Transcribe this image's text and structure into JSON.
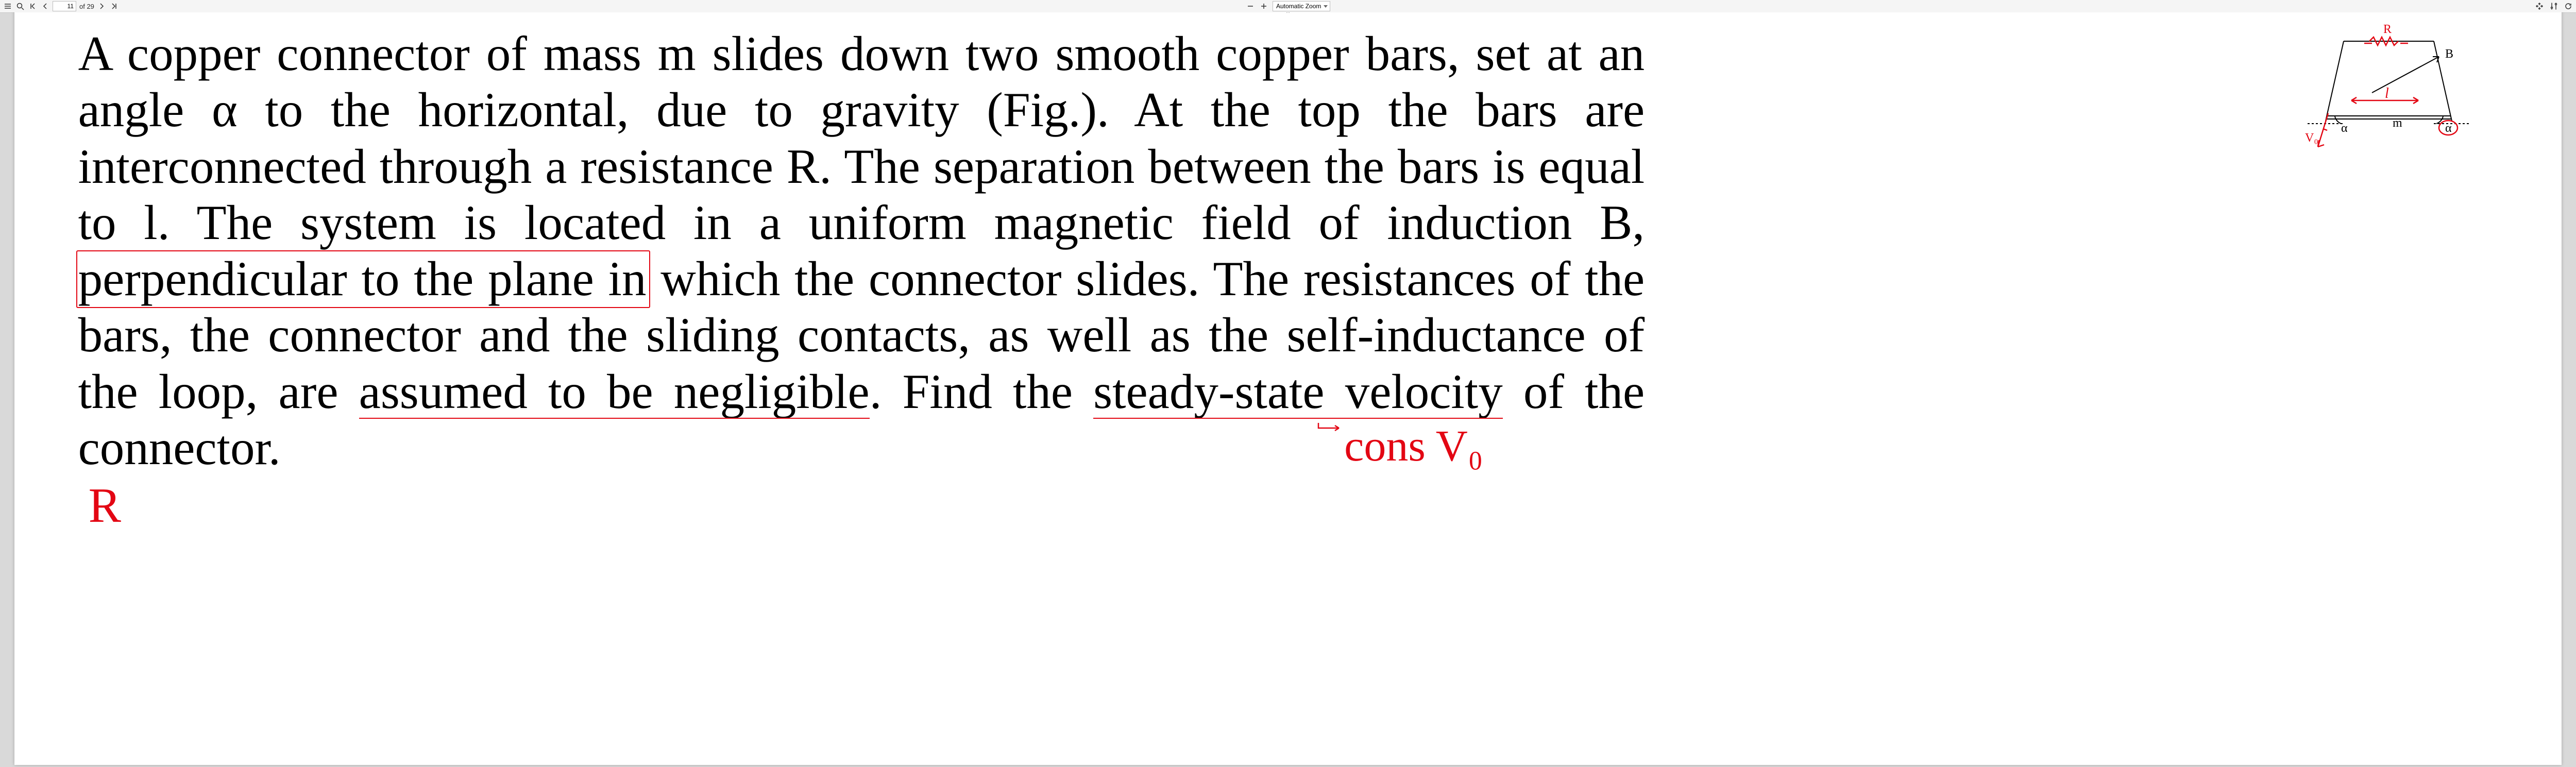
{
  "toolbar": {
    "menuIcon": "menu",
    "searchIcon": "search",
    "firstPageIcon": "first",
    "prevPageIcon": "prev",
    "currentPage": "11",
    "pageOf": "of 29",
    "nextPageIcon": "next",
    "lastPageIcon": "last",
    "zoomOut": "−",
    "zoomIn": "+",
    "zoomLabel": "Automatic Zoom",
    "fitIcon": "fit",
    "toolsIcon": "tools",
    "refreshIcon": "refresh"
  },
  "problem": {
    "text": "A copper connector of mass m slides down two smooth copper bars, set at an angle α to the horizontal, due to gravity (Fig.). At the top the bars are interconnected through a resistance R. The separation between the bars is equal to l. The system is located in a uniform magnetic field of induction B, perpendicular to the plane in which the connector slides. The resistances of the bars, the connector and the sliding contacts, as well as the self-inductance of the loop, are assumed to be negligible. Find the steady-state velocity of the connector.",
    "fontFamily": "Times New Roman",
    "fontSizePt": 26,
    "textColor": "#000000",
    "annotationColor": "#e30613",
    "boxed_phrase": "perpendicular to the plane in",
    "underline1": "assumed to be negligible",
    "underline2": "steady-state velocity",
    "handnote_arrow": "→ cons V₀",
    "handnote_bottom": "R"
  },
  "diagram": {
    "labels": {
      "R": "R",
      "B": "B",
      "l": "l",
      "m": "m",
      "alpha_left": "α",
      "alpha_right": "α",
      "V0": "V₀"
    },
    "colors": {
      "line": "#000000",
      "annotation": "#e30613"
    },
    "angles": {
      "inclineDeg": 20
    },
    "strokeWidth": 2,
    "annotationStrokeWidth": 2.5
  },
  "colors": {
    "pageBg": "#ffffff",
    "viewportBg": "#d9d9d9",
    "toolbarBg": "#f5f5f5",
    "toolbarBorder": "#c8c8c8",
    "annotation": "#e30613"
  }
}
